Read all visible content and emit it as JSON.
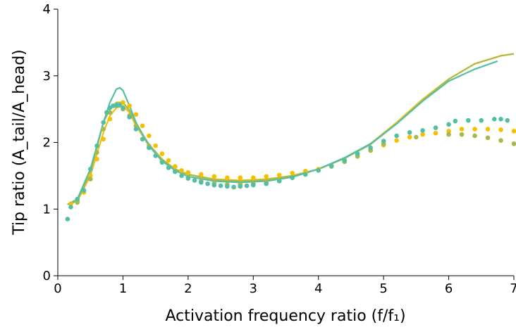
{
  "chart_data": {
    "type": "scatter",
    "xlabel": "Activation frequency ratio (f/f₁)",
    "ylabel": "Tip ratio (A_tail/A_head)",
    "xlim": [
      0,
      7
    ],
    "ylim": [
      0,
      4
    ],
    "xticks": [
      0,
      1,
      2,
      3,
      4,
      5,
      6,
      7
    ],
    "yticks": [
      0,
      1,
      2,
      3,
      4
    ],
    "series": [
      {
        "type": "line",
        "color": "#f2c014",
        "x": [
          0.15,
          0.3,
          0.5,
          0.7,
          0.8,
          0.9,
          1.0,
          1.1,
          1.2,
          1.4,
          1.6,
          1.8,
          2.0,
          2.4,
          2.8,
          3.2,
          3.6,
          4.0,
          4.4,
          4.8,
          5.2,
          5.6,
          6.0,
          6.4,
          6.8,
          7.0
        ],
        "values": [
          1.07,
          1.12,
          1.5,
          2.15,
          2.4,
          2.52,
          2.55,
          2.45,
          2.25,
          1.95,
          1.74,
          1.6,
          1.52,
          1.45,
          1.43,
          1.45,
          1.5,
          1.6,
          1.76,
          1.98,
          2.3,
          2.65,
          2.95,
          3.18,
          3.3,
          3.33
        ]
      },
      {
        "type": "line",
        "color": "#b3b83e",
        "x": [
          0.15,
          0.3,
          0.5,
          0.7,
          0.8,
          0.9,
          1.0,
          1.1,
          1.2,
          1.4,
          1.6,
          1.8,
          2.0,
          2.4,
          2.8,
          3.2,
          3.6,
          4.0,
          4.4,
          4.8,
          5.2,
          5.6,
          6.0,
          6.4,
          6.8,
          7.0
        ],
        "values": [
          1.07,
          1.12,
          1.55,
          2.3,
          2.5,
          2.6,
          2.6,
          2.48,
          2.28,
          1.97,
          1.75,
          1.6,
          1.52,
          1.44,
          1.42,
          1.44,
          1.5,
          1.6,
          1.76,
          1.97,
          2.28,
          2.63,
          2.95,
          3.18,
          3.3,
          3.33
        ]
      },
      {
        "type": "line",
        "color": "#52bfa5",
        "x": [
          0.15,
          0.3,
          0.5,
          0.7,
          0.8,
          0.9,
          0.95,
          1.0,
          1.1,
          1.2,
          1.4,
          1.6,
          1.8,
          2.0,
          2.4,
          2.8,
          3.2,
          3.6,
          4.0,
          4.4,
          4.8,
          5.2,
          5.6,
          6.0,
          6.4,
          6.75
        ],
        "values": [
          1.07,
          1.15,
          1.6,
          2.3,
          2.6,
          2.8,
          2.82,
          2.78,
          2.55,
          2.3,
          1.95,
          1.72,
          1.58,
          1.49,
          1.42,
          1.4,
          1.42,
          1.48,
          1.6,
          1.77,
          1.98,
          2.28,
          2.62,
          2.92,
          3.1,
          3.22
        ]
      },
      {
        "type": "scatter",
        "color": "#f5c000",
        "x": [
          0.2,
          0.3,
          0.4,
          0.5,
          0.6,
          0.7,
          0.8,
          0.9,
          1.0,
          1.1,
          1.2,
          1.3,
          1.4,
          1.5,
          1.6,
          1.7,
          1.8,
          1.9,
          2.0,
          2.2,
          2.4,
          2.6,
          2.8,
          3.0,
          3.2,
          3.4,
          3.6,
          3.8,
          4.0,
          4.2,
          4.4,
          4.6,
          4.8,
          5.0,
          5.2,
          5.4,
          5.6,
          5.8,
          6.0,
          6.2,
          6.4,
          6.6,
          6.8,
          7.0
        ],
        "values": [
          1.08,
          1.12,
          1.25,
          1.5,
          1.75,
          2.05,
          2.35,
          2.55,
          2.6,
          2.55,
          2.42,
          2.25,
          2.1,
          1.95,
          1.83,
          1.73,
          1.64,
          1.58,
          1.55,
          1.52,
          1.49,
          1.47,
          1.47,
          1.47,
          1.49,
          1.51,
          1.54,
          1.57,
          1.6,
          1.65,
          1.72,
          1.8,
          1.88,
          1.96,
          2.03,
          2.08,
          2.12,
          2.14,
          2.17,
          2.2,
          2.2,
          2.2,
          2.19,
          2.17
        ]
      },
      {
        "type": "scatter",
        "color": "#a9b84a",
        "x": [
          0.3,
          0.5,
          0.6,
          0.7,
          0.8,
          0.9,
          1.0,
          1.1,
          1.2,
          1.4,
          1.6,
          1.8,
          2.0,
          2.2,
          2.4,
          2.6,
          2.8,
          3.0,
          3.2,
          3.4,
          3.6,
          3.8,
          4.0,
          4.2,
          4.4,
          4.6,
          4.8,
          5.0,
          5.5,
          6.0,
          6.2,
          6.4,
          6.6,
          6.8,
          7.0
        ],
        "values": [
          1.1,
          1.45,
          1.85,
          2.2,
          2.45,
          2.55,
          2.5,
          2.4,
          2.25,
          1.95,
          1.72,
          1.57,
          1.48,
          1.42,
          1.39,
          1.37,
          1.37,
          1.38,
          1.4,
          1.43,
          1.47,
          1.52,
          1.58,
          1.64,
          1.71,
          1.79,
          1.88,
          1.98,
          2.08,
          2.12,
          2.12,
          2.1,
          2.07,
          2.03,
          1.98
        ]
      },
      {
        "type": "scatter",
        "color": "#52bfa5",
        "x": [
          0.15,
          0.2,
          0.3,
          0.4,
          0.5,
          0.6,
          0.7,
          0.75,
          0.8,
          0.85,
          0.9,
          0.95,
          1.0,
          1.1,
          1.2,
          1.3,
          1.4,
          1.5,
          1.6,
          1.7,
          1.8,
          1.9,
          2.0,
          2.1,
          2.2,
          2.3,
          2.4,
          2.5,
          2.6,
          2.7,
          2.8,
          2.9,
          3.0,
          3.2,
          3.4,
          3.6,
          3.8,
          4.0,
          4.2,
          4.4,
          4.6,
          4.8,
          5.0,
          5.2,
          5.4,
          5.6,
          5.8,
          6.0,
          6.1,
          6.3,
          6.5,
          6.7,
          6.8,
          6.9
        ],
        "values": [
          0.85,
          1.03,
          1.15,
          1.28,
          1.6,
          1.95,
          2.3,
          2.45,
          2.52,
          2.55,
          2.56,
          2.56,
          2.52,
          2.38,
          2.2,
          2.05,
          1.92,
          1.8,
          1.7,
          1.62,
          1.56,
          1.5,
          1.46,
          1.43,
          1.4,
          1.38,
          1.36,
          1.35,
          1.34,
          1.33,
          1.34,
          1.35,
          1.36,
          1.38,
          1.42,
          1.47,
          1.52,
          1.58,
          1.65,
          1.73,
          1.83,
          1.92,
          2.02,
          2.1,
          2.15,
          2.18,
          2.22,
          2.27,
          2.32,
          2.33,
          2.33,
          2.35,
          2.35,
          2.33
        ]
      }
    ]
  }
}
